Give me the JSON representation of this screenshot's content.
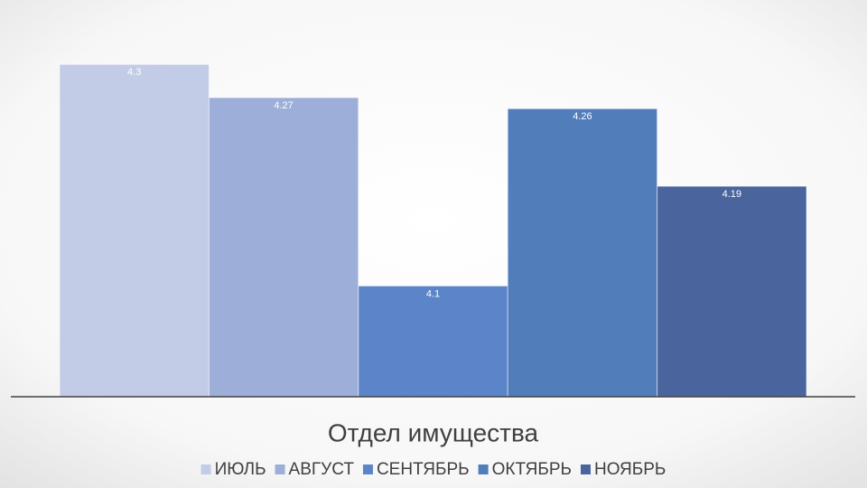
{
  "chart_data": {
    "type": "bar",
    "categories": [
      "Отдел имущества"
    ],
    "series": [
      {
        "name": "ИЮЛЬ",
        "color": "#c3cce6",
        "values": [
          4.3
        ]
      },
      {
        "name": "АВГУСТ",
        "color": "#9dafd9",
        "values": [
          4.27
        ]
      },
      {
        "name": "СЕНТЯБРЬ",
        "color": "#5b85c8",
        "values": [
          4.1
        ]
      },
      {
        "name": "ОКТЯБРЬ",
        "color": "#527dbb",
        "values": [
          4.26
        ]
      },
      {
        "name": "НОЯБРЬ",
        "color": "#4a659e",
        "values": [
          4.19
        ]
      }
    ],
    "ylim": [
      4,
      4.35
    ],
    "legend": "bottom"
  }
}
